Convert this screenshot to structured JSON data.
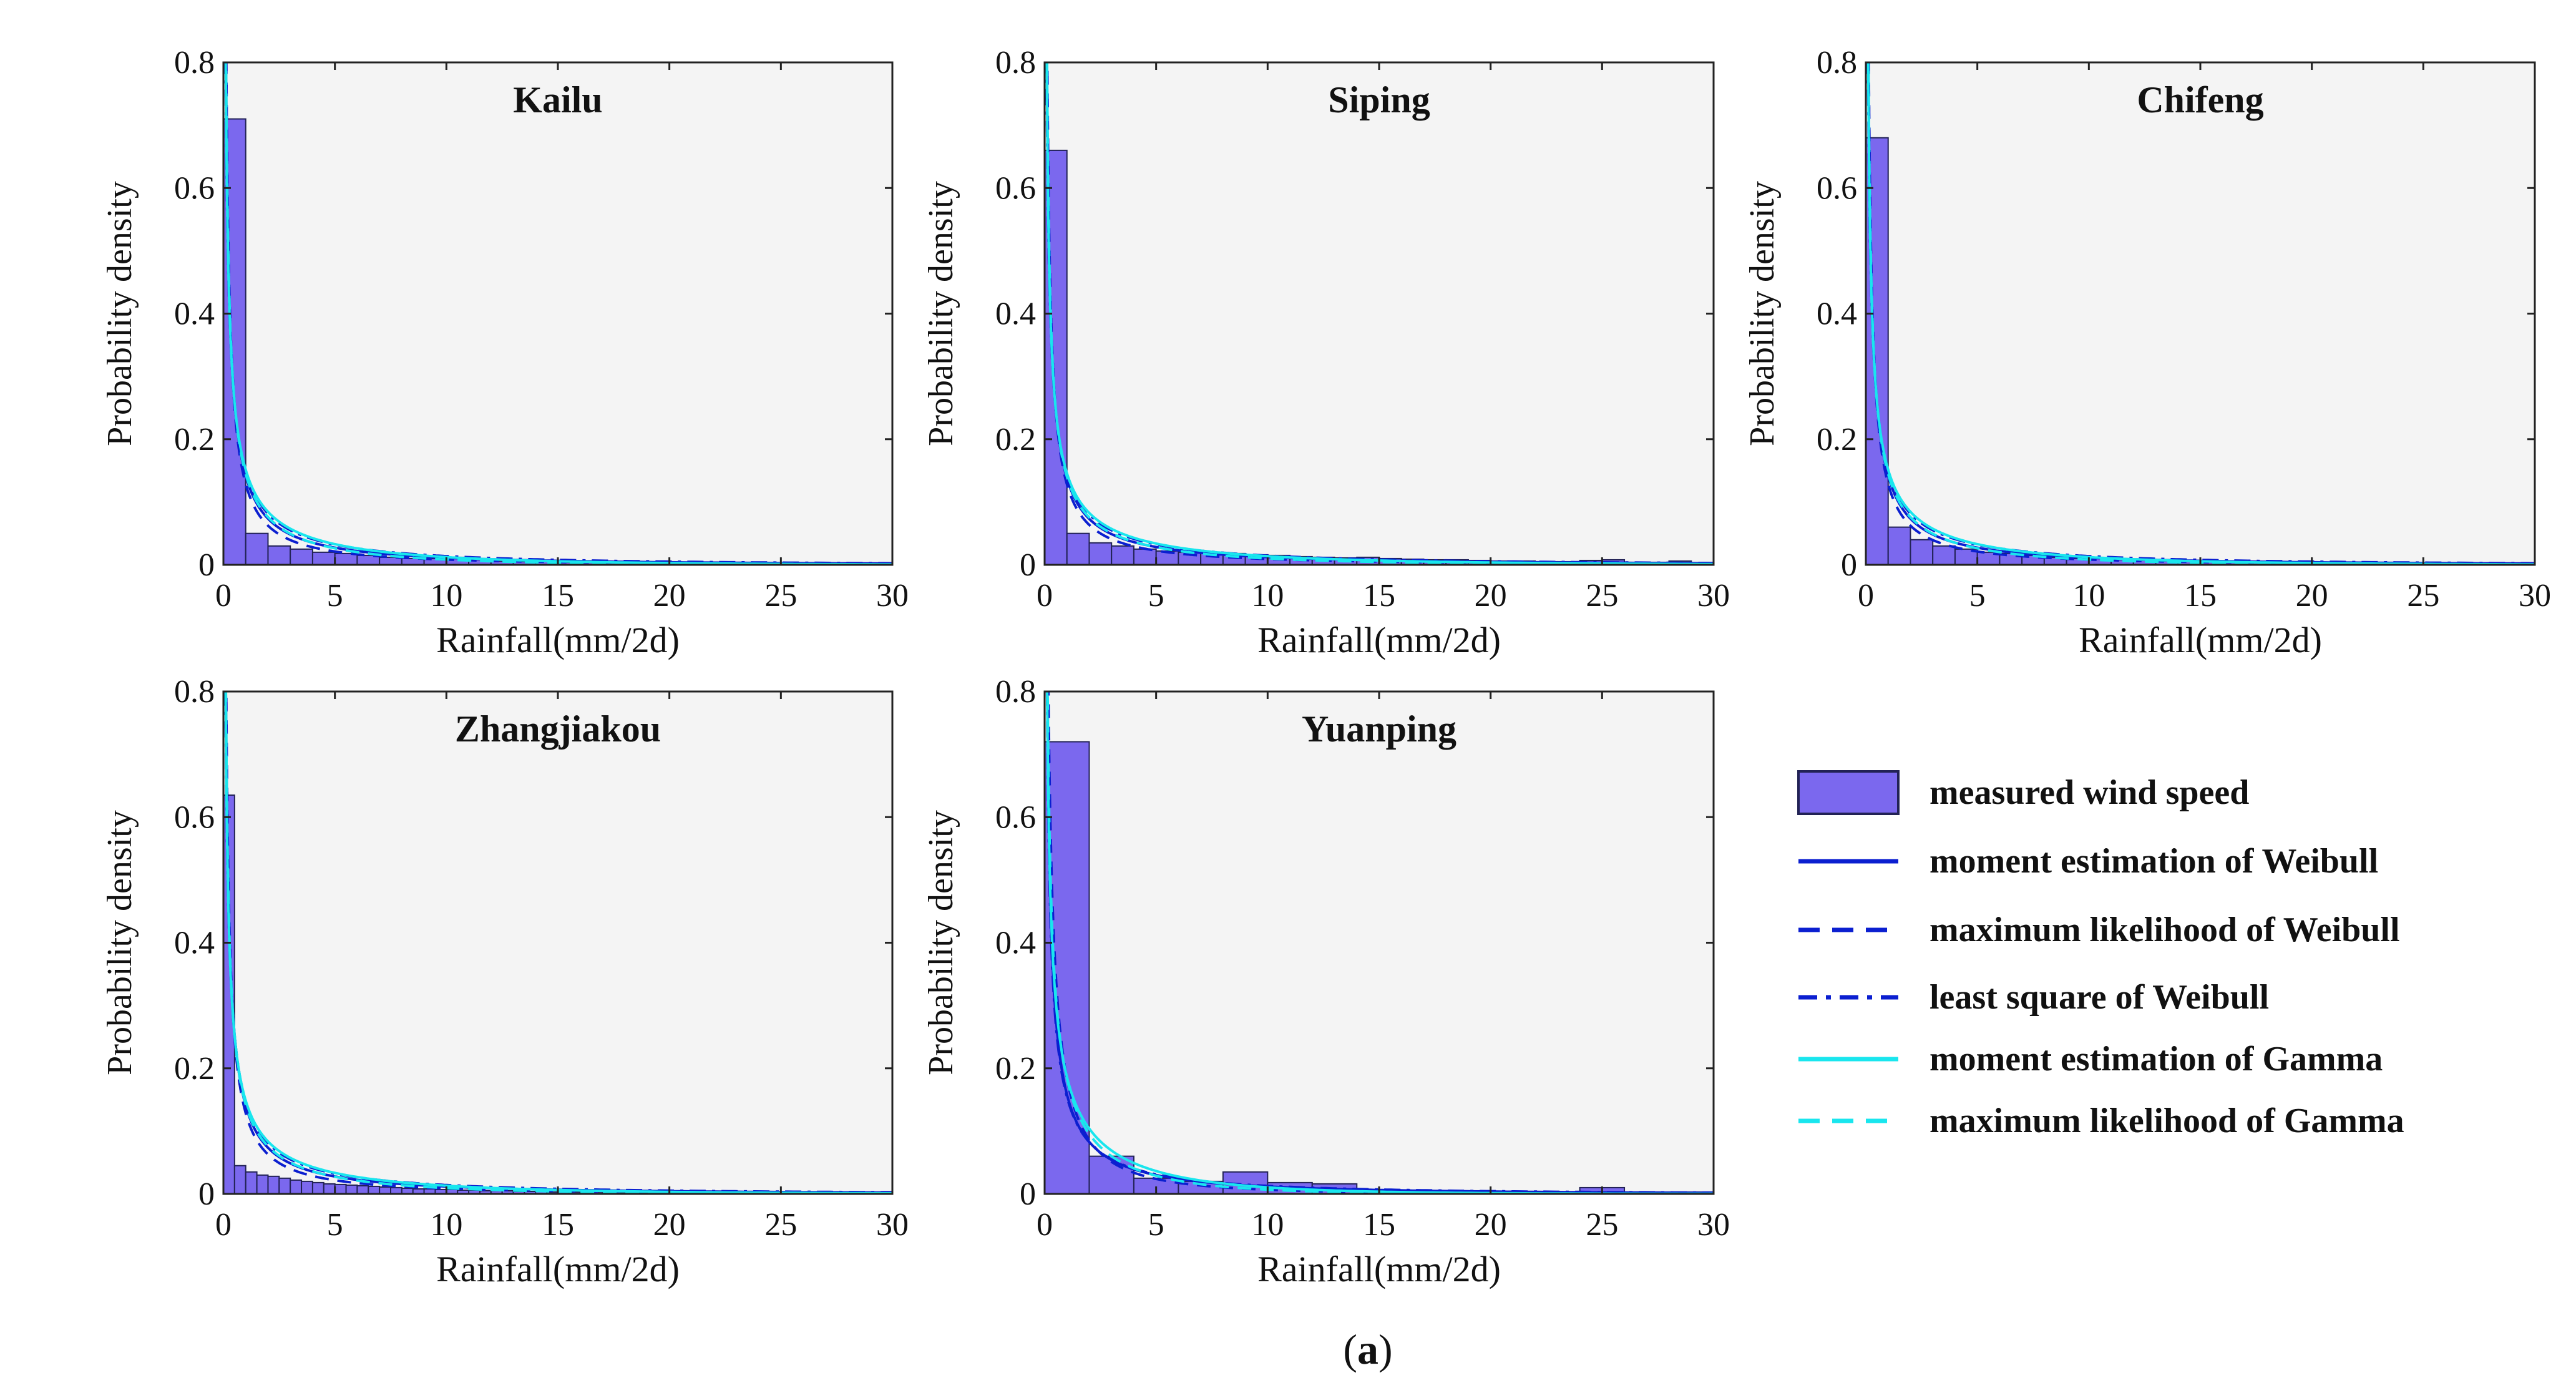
{
  "figure": {
    "caption": "(a)",
    "caption_letter": "a"
  },
  "colors": {
    "bar_fill": "#7B68EE",
    "bar_stroke": "#222255",
    "plot_bg": "#F4F4F4",
    "weibull": "#0B1FD0",
    "gamma": "#19E6EE"
  },
  "legend": {
    "items": [
      {
        "label": "measured wind speed",
        "kind": "bar"
      },
      {
        "label": "moment estimation of Weibull",
        "kind": "line",
        "color": "#0B1FD0",
        "dash": "solid"
      },
      {
        "label": "maximum  likelihood of Weibull",
        "kind": "line",
        "color": "#0B1FD0",
        "dash": "dashed"
      },
      {
        "label": "least square of Weibull",
        "kind": "line",
        "color": "#0B1FD0",
        "dash": "dashdot"
      },
      {
        "label": "moment estimation of Gamma",
        "kind": "line",
        "color": "#19E6EE",
        "dash": "solid"
      },
      {
        "label": "maximum  likelihood of Gamma",
        "kind": "line",
        "color": "#19E6EE",
        "dash": "dashed"
      }
    ]
  },
  "chart_data": [
    {
      "type": "bar",
      "title": "Kailu",
      "xlabel": "Rainfall(mm/2d)",
      "ylabel": "Probability density",
      "xlim": [
        0,
        30
      ],
      "ylim": [
        0,
        0.8
      ],
      "xticks": [
        0,
        5,
        10,
        15,
        20,
        25,
        30
      ],
      "yticks": [
        0,
        0.2,
        0.4,
        0.6,
        0.8
      ],
      "ytick_labels": [
        "0",
        "0.2",
        "0.4",
        "0.6",
        "0.8"
      ],
      "bin_width": 1.0,
      "values": [
        0.71,
        0.05,
        0.03,
        0.025,
        0.02,
        0.018,
        0.015,
        0.012,
        0.01,
        0.01,
        0.012,
        0.008,
        0.006,
        0.005,
        0.005,
        0.004,
        0.004,
        0.003,
        0.003,
        0.003,
        0.002,
        0.002,
        0.002,
        0.002,
        0.002,
        0.003,
        0.001,
        0.001,
        0.001,
        0.001
      ],
      "curves": {
        "weibull_moment": {
          "k": 0.4,
          "lambda": 2.0
        },
        "weibull_ml": {
          "k": 0.35,
          "lambda": 1.0
        },
        "weibull_ls": {
          "k": 0.45,
          "lambda": 3.0
        },
        "gamma_moment": {
          "a": 0.3,
          "theta": 10
        },
        "gamma_ml": {
          "a": 0.25,
          "theta": 8
        }
      }
    },
    {
      "type": "bar",
      "title": "Siping",
      "xlabel": "Rainfall(mm/2d)",
      "ylabel": "Probability density",
      "xlim": [
        0,
        30
      ],
      "ylim": [
        0,
        0.8
      ],
      "xticks": [
        0,
        5,
        10,
        15,
        20,
        25,
        30
      ],
      "yticks": [
        0,
        0.2,
        0.4,
        0.6,
        0.8
      ],
      "ytick_labels": [
        "0",
        "0.2",
        "0.4",
        "0.6",
        "0.8"
      ],
      "bin_width": 1.0,
      "values": [
        0.66,
        0.05,
        0.035,
        0.03,
        0.025,
        0.022,
        0.02,
        0.02,
        0.018,
        0.016,
        0.015,
        0.013,
        0.012,
        0.011,
        0.012,
        0.01,
        0.009,
        0.008,
        0.008,
        0.007,
        0.006,
        0.006,
        0.005,
        0.005,
        0.007,
        0.008,
        0.004,
        0.004,
        0.006,
        0.003
      ],
      "curves": {
        "weibull_moment": {
          "k": 0.4,
          "lambda": 2.6
        },
        "weibull_ml": {
          "k": 0.35,
          "lambda": 1.3
        },
        "weibull_ls": {
          "k": 0.45,
          "lambda": 3.6
        },
        "gamma_moment": {
          "a": 0.3,
          "theta": 12
        },
        "gamma_ml": {
          "a": 0.25,
          "theta": 10
        }
      }
    },
    {
      "type": "bar",
      "title": "Chifeng",
      "xlabel": "Rainfall(mm/2d)",
      "ylabel": "Probability density",
      "xlim": [
        0,
        30
      ],
      "ylim": [
        0,
        0.8
      ],
      "xticks": [
        0,
        5,
        10,
        15,
        20,
        25,
        30
      ],
      "yticks": [
        0,
        0.2,
        0.4,
        0.6,
        0.8
      ],
      "ytick_labels": [
        "0",
        "0.2",
        "0.4",
        "0.6",
        "0.8"
      ],
      "bin_width": 1.0,
      "values": [
        0.68,
        0.06,
        0.04,
        0.03,
        0.025,
        0.02,
        0.018,
        0.015,
        0.012,
        0.01,
        0.01,
        0.008,
        0.007,
        0.006,
        0.005,
        0.005,
        0.004,
        0.004,
        0.003,
        0.003,
        0.003,
        0.002,
        0.002,
        0.002,
        0.002,
        0.003,
        0.002,
        0.002,
        0.001,
        0.001
      ],
      "curves": {
        "weibull_moment": {
          "k": 0.4,
          "lambda": 2.0
        },
        "weibull_ml": {
          "k": 0.35,
          "lambda": 1.0
        },
        "weibull_ls": {
          "k": 0.45,
          "lambda": 3.0
        },
        "gamma_moment": {
          "a": 0.3,
          "theta": 10
        },
        "gamma_ml": {
          "a": 0.25,
          "theta": 8
        }
      }
    },
    {
      "type": "bar",
      "title": "Zhangjiakou",
      "xlabel": "Rainfall(mm/2d)",
      "ylabel": "Probability density",
      "xlim": [
        0,
        30
      ],
      "ylim": [
        0,
        0.8
      ],
      "xticks": [
        0,
        5,
        10,
        15,
        20,
        25,
        30
      ],
      "yticks": [
        0,
        0.2,
        0.4,
        0.6,
        0.8
      ],
      "ytick_labels": [
        "0",
        "0.2",
        "0.4",
        "0.6",
        "0.8"
      ],
      "bin_width": 0.5,
      "values": [
        0.635,
        0.045,
        0.035,
        0.03,
        0.028,
        0.025,
        0.022,
        0.02,
        0.018,
        0.016,
        0.015,
        0.014,
        0.013,
        0.012,
        0.011,
        0.01,
        0.009,
        0.008,
        0.008,
        0.007,
        0.007,
        0.006,
        0.006,
        0.005,
        0.005,
        0.005,
        0.004,
        0.004,
        0.004,
        0.003,
        0.003,
        0.003,
        0.003,
        0.003,
        0.002,
        0.002,
        0.002,
        0.002,
        0.002,
        0.002,
        0.002,
        0.002,
        0.001,
        0.001,
        0.001,
        0.001,
        0.001,
        0.001,
        0.001,
        0.001,
        0.001,
        0.001,
        0.001,
        0.001,
        0.001,
        0.001,
        0.001,
        0.001,
        0.001,
        0.001
      ],
      "curves": {
        "weibull_moment": {
          "k": 0.4,
          "lambda": 2.2
        },
        "weibull_ml": {
          "k": 0.35,
          "lambda": 1.1
        },
        "weibull_ls": {
          "k": 0.45,
          "lambda": 3.2
        },
        "gamma_moment": {
          "a": 0.3,
          "theta": 11
        },
        "gamma_ml": {
          "a": 0.25,
          "theta": 9
        }
      }
    },
    {
      "type": "bar",
      "title": "Yuanping",
      "xlabel": "Rainfall(mm/2d)",
      "ylabel": "Probability density",
      "xlim": [
        0,
        30
      ],
      "ylim": [
        0,
        0.8
      ],
      "xticks": [
        0,
        5,
        10,
        15,
        20,
        25,
        30
      ],
      "yticks": [
        0,
        0.2,
        0.4,
        0.6,
        0.8
      ],
      "ytick_labels": [
        "0",
        "0.2",
        "0.4",
        "0.6",
        "0.8"
      ],
      "bin_width": 2.0,
      "values": [
        0.72,
        0.06,
        0.025,
        0.02,
        0.035,
        0.018,
        0.016,
        0.006,
        0.005,
        0.005,
        0.004,
        0.003,
        0.01,
        0.003,
        0.003
      ],
      "curves": {
        "weibull_moment": {
          "k": 0.45,
          "lambda": 2.0
        },
        "weibull_ml": {
          "k": 0.5,
          "lambda": 1.0
        },
        "weibull_ls": {
          "k": 0.45,
          "lambda": 2.4
        },
        "gamma_moment": {
          "a": 0.4,
          "theta": 6
        },
        "gamma_ml": {
          "a": 0.35,
          "theta": 5
        }
      }
    }
  ]
}
